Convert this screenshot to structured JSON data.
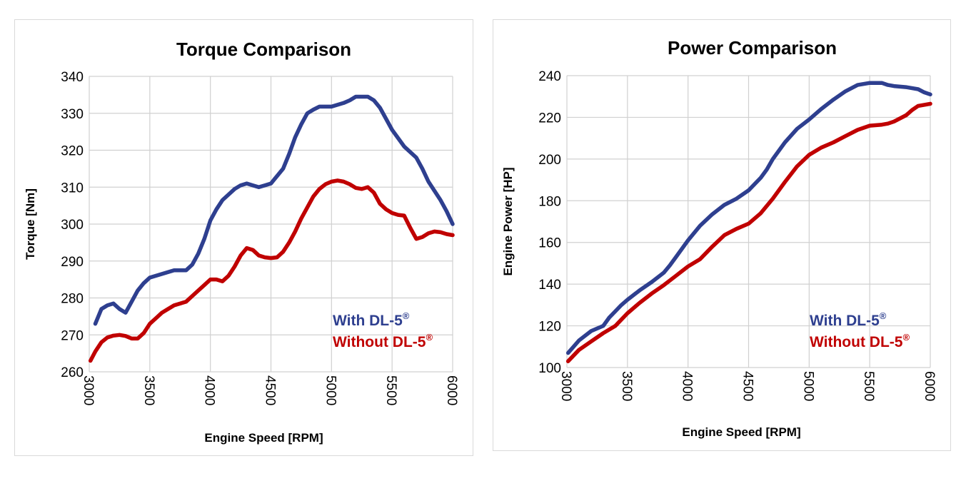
{
  "chart_data": [
    {
      "type": "line",
      "title": "Torque Comparison",
      "xlabel": "Engine Speed [RPM]",
      "ylabel": "Torque [Nm]",
      "xlim": [
        3000,
        6000
      ],
      "ylim": [
        260,
        340
      ],
      "x_ticks": [
        "3000",
        "3500",
        "4000",
        "4500",
        "5000",
        "5500",
        "6000"
      ],
      "y_ticks": [
        "260",
        "270",
        "280",
        "290",
        "300",
        "310",
        "320",
        "330",
        "340"
      ],
      "grid": true,
      "legend_position": "bottom-right",
      "legend_superscript": "®",
      "series": [
        {
          "name": "With DL-5",
          "color": "#2e3f8f",
          "points": [
            [
              3050,
              273
            ],
            [
              3100,
              277
            ],
            [
              3150,
              278
            ],
            [
              3200,
              278.5
            ],
            [
              3250,
              277
            ],
            [
              3300,
              276
            ],
            [
              3350,
              279
            ],
            [
              3400,
              282
            ],
            [
              3450,
              284
            ],
            [
              3500,
              285.5
            ],
            [
              3600,
              286.5
            ],
            [
              3700,
              287.5
            ],
            [
              3800,
              287.5
            ],
            [
              3850,
              289
            ],
            [
              3900,
              292
            ],
            [
              3950,
              296
            ],
            [
              4000,
              301
            ],
            [
              4050,
              304
            ],
            [
              4100,
              306.5
            ],
            [
              4150,
              308
            ],
            [
              4200,
              309.5
            ],
            [
              4250,
              310.5
            ],
            [
              4300,
              311
            ],
            [
              4350,
              310.5
            ],
            [
              4400,
              310
            ],
            [
              4450,
              310.5
            ],
            [
              4500,
              311
            ],
            [
              4550,
              313
            ],
            [
              4600,
              315
            ],
            [
              4650,
              319
            ],
            [
              4700,
              323.5
            ],
            [
              4750,
              327
            ],
            [
              4800,
              330
            ],
            [
              4850,
              331
            ],
            [
              4900,
              331.8
            ],
            [
              5000,
              331.8
            ],
            [
              5100,
              332.8
            ],
            [
              5150,
              333.5
            ],
            [
              5200,
              334.5
            ],
            [
              5300,
              334.5
            ],
            [
              5350,
              333.5
            ],
            [
              5400,
              331.5
            ],
            [
              5450,
              328.5
            ],
            [
              5500,
              325.5
            ],
            [
              5600,
              321
            ],
            [
              5700,
              318
            ],
            [
              5750,
              315
            ],
            [
              5800,
              311.5
            ],
            [
              5850,
              309
            ],
            [
              5900,
              306.5
            ],
            [
              5950,
              303.5
            ],
            [
              6000,
              300
            ]
          ]
        },
        {
          "name": "Without DL-5",
          "color": "#c00000",
          "points": [
            [
              3010,
              263
            ],
            [
              3050,
              265.5
            ],
            [
              3100,
              268
            ],
            [
              3150,
              269.3
            ],
            [
              3200,
              269.8
            ],
            [
              3250,
              270
            ],
            [
              3300,
              269.7
            ],
            [
              3350,
              269
            ],
            [
              3400,
              269
            ],
            [
              3450,
              270.5
            ],
            [
              3500,
              273
            ],
            [
              3550,
              274.5
            ],
            [
              3600,
              276
            ],
            [
              3650,
              277
            ],
            [
              3700,
              278
            ],
            [
              3800,
              279
            ],
            [
              3850,
              280.5
            ],
            [
              3900,
              282
            ],
            [
              3950,
              283.5
            ],
            [
              4000,
              285
            ],
            [
              4050,
              285
            ],
            [
              4100,
              284.5
            ],
            [
              4150,
              286
            ],
            [
              4200,
              288.5
            ],
            [
              4250,
              291.5
            ],
            [
              4300,
              293.5
            ],
            [
              4350,
              293
            ],
            [
              4400,
              291.5
            ],
            [
              4450,
              291
            ],
            [
              4500,
              290.8
            ],
            [
              4550,
              291
            ],
            [
              4600,
              292.5
            ],
            [
              4650,
              295
            ],
            [
              4700,
              298
            ],
            [
              4750,
              301.5
            ],
            [
              4800,
              304.5
            ],
            [
              4850,
              307.5
            ],
            [
              4900,
              309.5
            ],
            [
              4950,
              310.8
            ],
            [
              5000,
              311.5
            ],
            [
              5050,
              311.8
            ],
            [
              5100,
              311.5
            ],
            [
              5150,
              310.8
            ],
            [
              5200,
              309.8
            ],
            [
              5250,
              309.5
            ],
            [
              5300,
              310
            ],
            [
              5350,
              308.5
            ],
            [
              5400,
              305.5
            ],
            [
              5450,
              304
            ],
            [
              5500,
              303
            ],
            [
              5550,
              302.5
            ],
            [
              5600,
              302.3
            ],
            [
              5650,
              299
            ],
            [
              5700,
              296
            ],
            [
              5750,
              296.5
            ],
            [
              5800,
              297.5
            ],
            [
              5850,
              298
            ],
            [
              5900,
              297.8
            ],
            [
              5950,
              297.3
            ],
            [
              6000,
              297
            ]
          ]
        }
      ]
    },
    {
      "type": "line",
      "title": "Power Comparison",
      "xlabel": "Engine Speed [RPM]",
      "ylabel": "Engine Power [HP]",
      "xlim": [
        3000,
        6000
      ],
      "ylim": [
        100,
        240
      ],
      "x_ticks": [
        "3000",
        "3500",
        "4000",
        "4500",
        "5000",
        "5500",
        "6000"
      ],
      "y_ticks": [
        "100",
        "120",
        "140",
        "160",
        "180",
        "200",
        "220",
        "240"
      ],
      "grid": true,
      "legend_position": "bottom-right",
      "legend_superscript": "®",
      "series": [
        {
          "name": "With DL-5",
          "color": "#2e3f8f",
          "points": [
            [
              3010,
              107
            ],
            [
              3100,
              113
            ],
            [
              3200,
              117.5
            ],
            [
              3300,
              120
            ],
            [
              3350,
              124
            ],
            [
              3400,
              127
            ],
            [
              3450,
              130
            ],
            [
              3500,
              132.5
            ],
            [
              3600,
              137
            ],
            [
              3700,
              141
            ],
            [
              3800,
              145.5
            ],
            [
              3850,
              149
            ],
            [
              3900,
              153
            ],
            [
              3950,
              157
            ],
            [
              4000,
              161
            ],
            [
              4100,
              168
            ],
            [
              4200,
              173.5
            ],
            [
              4300,
              178
            ],
            [
              4400,
              181
            ],
            [
              4500,
              185
            ],
            [
              4600,
              191
            ],
            [
              4650,
              195
            ],
            [
              4700,
              200
            ],
            [
              4800,
              208
            ],
            [
              4900,
              214.5
            ],
            [
              5000,
              219
            ],
            [
              5100,
              224
            ],
            [
              5200,
              228.5
            ],
            [
              5300,
              232.5
            ],
            [
              5400,
              235.5
            ],
            [
              5500,
              236.5
            ],
            [
              5600,
              236.5
            ],
            [
              5650,
              235.5
            ],
            [
              5700,
              235
            ],
            [
              5800,
              234.5
            ],
            [
              5900,
              233.5
            ],
            [
              5950,
              232
            ],
            [
              6000,
              231
            ]
          ]
        },
        {
          "name": "Without DL-5",
          "color": "#c00000",
          "points": [
            [
              3010,
              103
            ],
            [
              3100,
              108.5
            ],
            [
              3200,
              112.5
            ],
            [
              3300,
              116.5
            ],
            [
              3400,
              120
            ],
            [
              3450,
              123
            ],
            [
              3500,
              126
            ],
            [
              3600,
              131
            ],
            [
              3700,
              135.5
            ],
            [
              3800,
              139.5
            ],
            [
              3900,
              144
            ],
            [
              4000,
              148.5
            ],
            [
              4100,
              152
            ],
            [
              4200,
              158
            ],
            [
              4300,
              163.5
            ],
            [
              4400,
              166.5
            ],
            [
              4500,
              169
            ],
            [
              4600,
              174
            ],
            [
              4700,
              181
            ],
            [
              4800,
              189
            ],
            [
              4900,
              196.5
            ],
            [
              5000,
              202
            ],
            [
              5100,
              205.5
            ],
            [
              5200,
              208
            ],
            [
              5300,
              211
            ],
            [
              5400,
              214
            ],
            [
              5500,
              216
            ],
            [
              5600,
              216.5
            ],
            [
              5650,
              217
            ],
            [
              5700,
              218
            ],
            [
              5800,
              221
            ],
            [
              5850,
              223.5
            ],
            [
              5900,
              225.5
            ],
            [
              5950,
              226
            ],
            [
              6000,
              226.5
            ]
          ]
        }
      ]
    }
  ]
}
